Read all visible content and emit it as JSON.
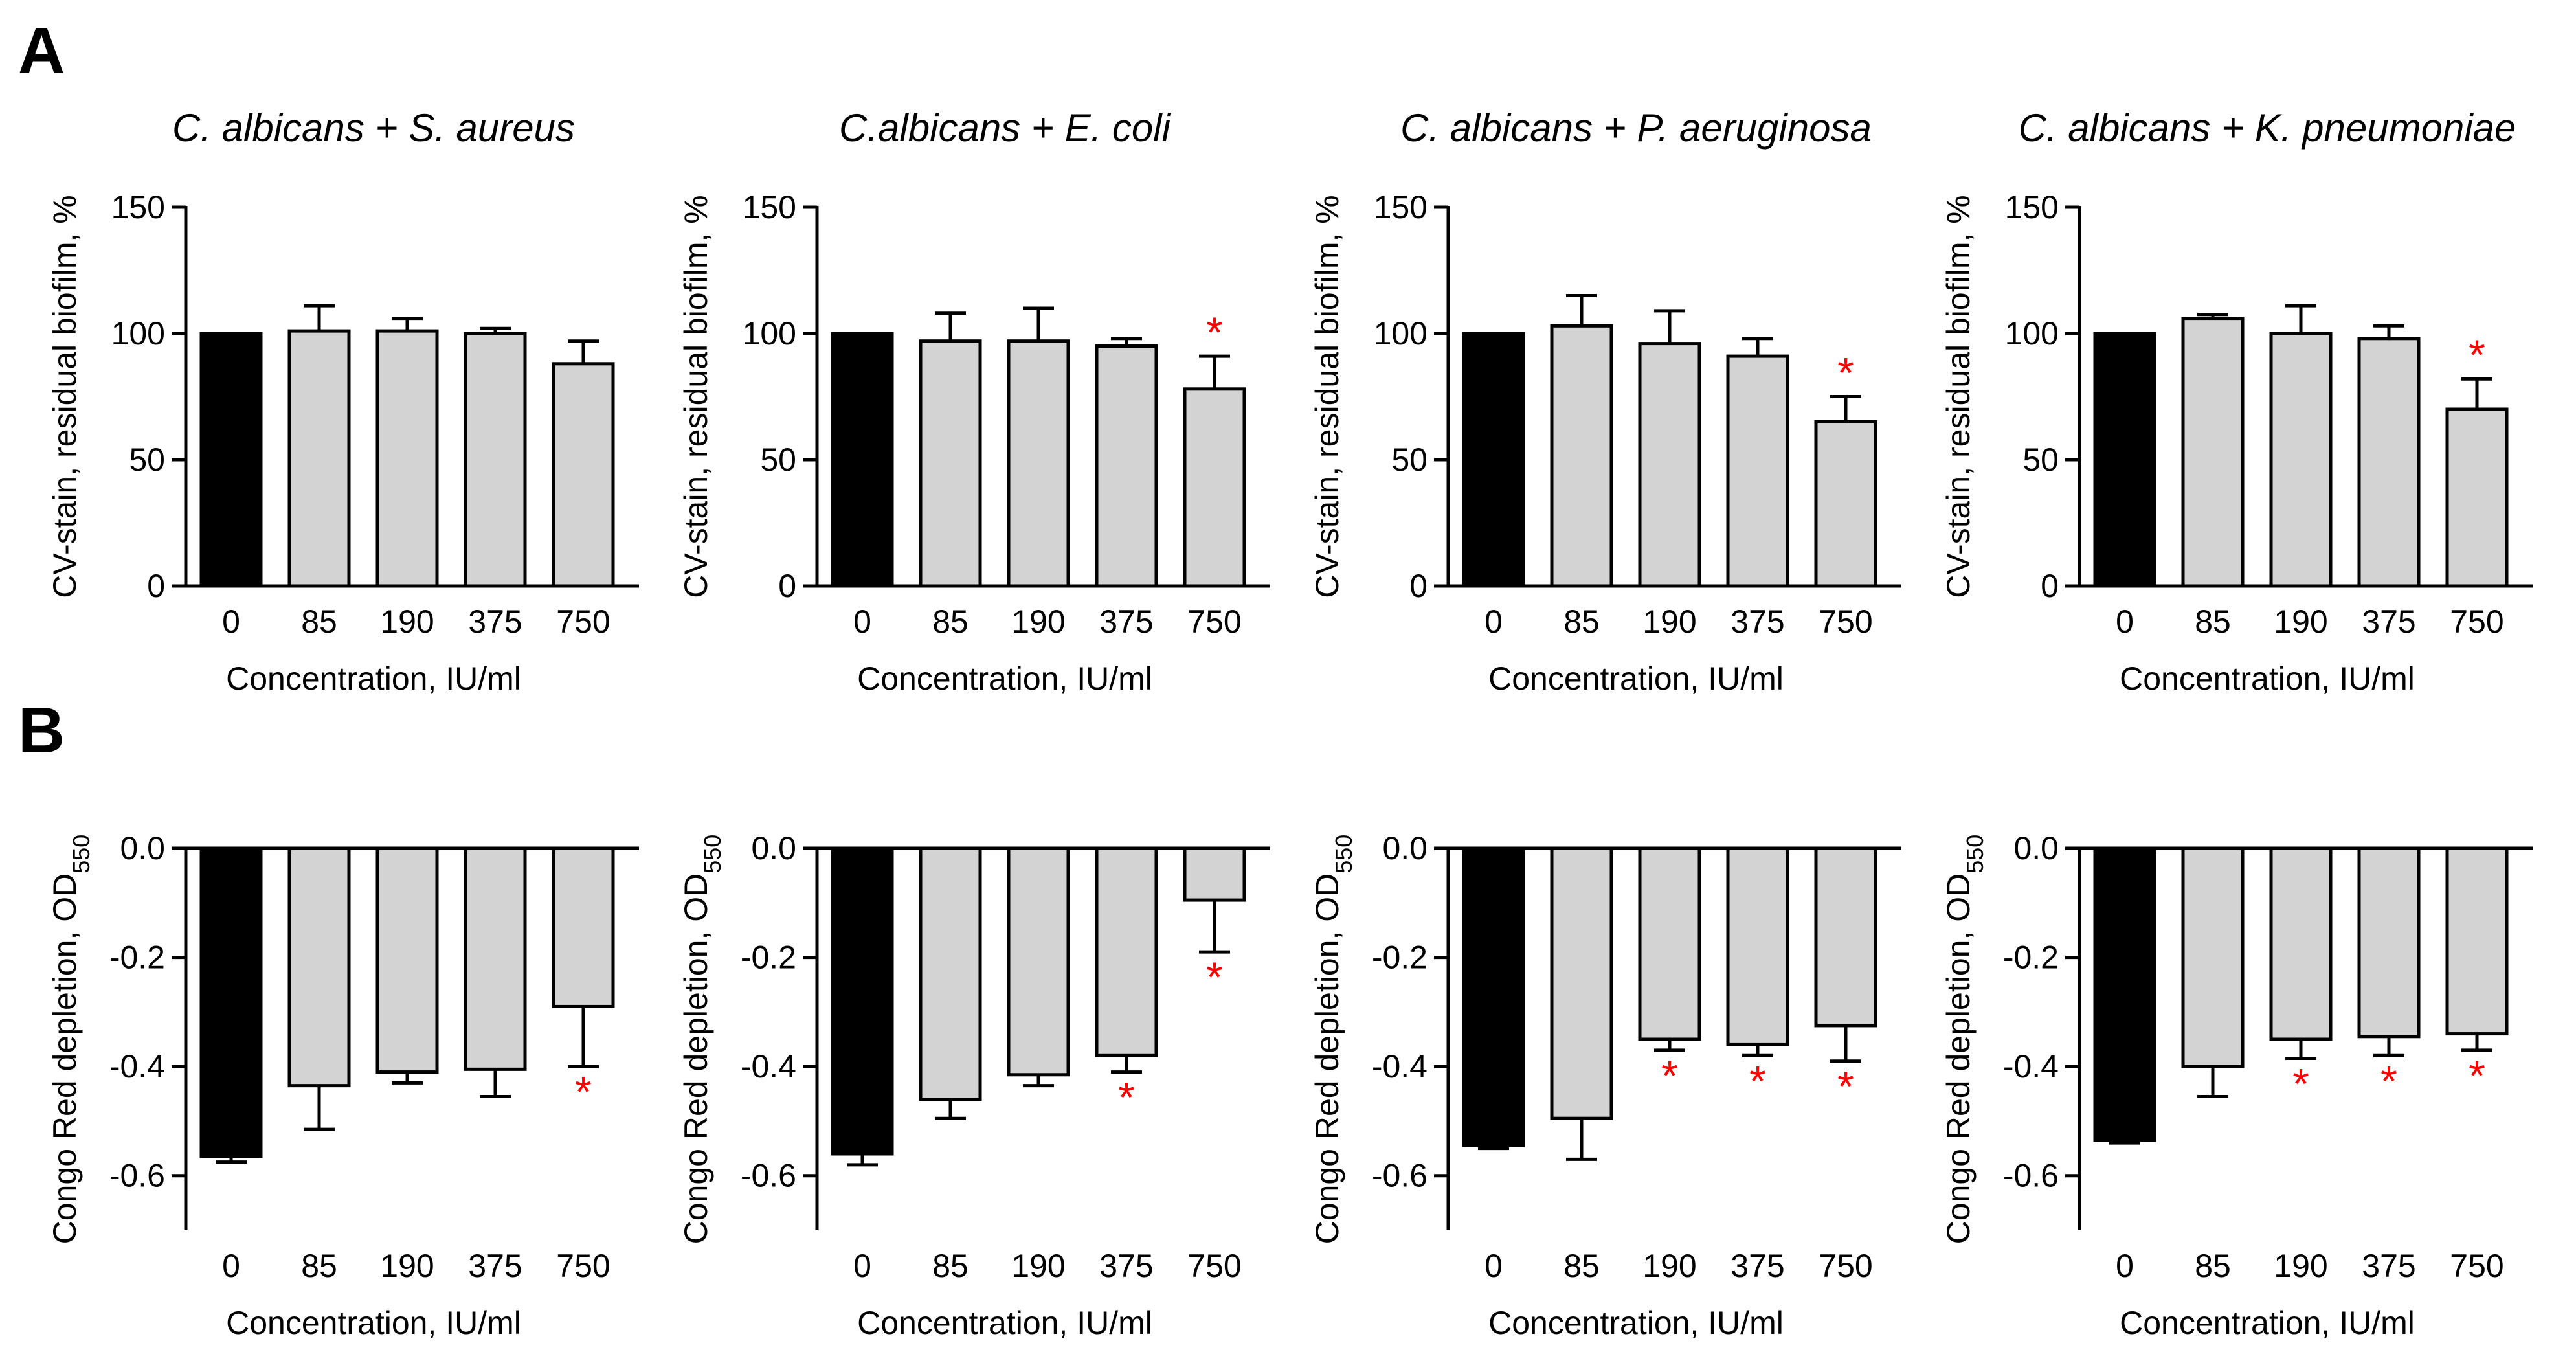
{
  "panel_labels": [
    "A",
    "B"
  ],
  "chart_data": [
    {
      "type": "bar",
      "panel": "A",
      "title": "C. albicans + S. aureus",
      "xlabel": "Concentration, IU/ml",
      "ylabel": "CV-stain, residual biofilm, %",
      "categories": [
        "0",
        "85",
        "190",
        "375",
        "750"
      ],
      "values": [
        100,
        101,
        101,
        100,
        88
      ],
      "errors": [
        0,
        10,
        5,
        2,
        9
      ],
      "significant": [
        "",
        "",
        "",
        "",
        ""
      ],
      "ylim": [
        0,
        150
      ],
      "yticks": [
        "0",
        "50",
        "100",
        "150"
      ],
      "colors": [
        "#000000",
        "#d3d3d3",
        "#d3d3d3",
        "#d3d3d3",
        "#d3d3d3"
      ]
    },
    {
      "type": "bar",
      "panel": "A",
      "title": "C.albicans + E. coli",
      "xlabel": "Concentration, IU/ml",
      "ylabel": "CV-stain, residual biofilm, %",
      "categories": [
        "0",
        "85",
        "190",
        "375",
        "750"
      ],
      "values": [
        100,
        97,
        97,
        95,
        78
      ],
      "errors": [
        0,
        11,
        13,
        3,
        13
      ],
      "significant": [
        "",
        "",
        "",
        "",
        "*"
      ],
      "ylim": [
        0,
        150
      ],
      "yticks": [
        "0",
        "50",
        "100",
        "150"
      ],
      "colors": [
        "#000000",
        "#d3d3d3",
        "#d3d3d3",
        "#d3d3d3",
        "#d3d3d3"
      ]
    },
    {
      "type": "bar",
      "panel": "A",
      "title": "C. albicans + P. aeruginosa",
      "xlabel": "Concentration, IU/ml",
      "ylabel": "CV-stain, residual biofilm, %",
      "categories": [
        "0",
        "85",
        "190",
        "375",
        "750"
      ],
      "values": [
        100,
        103,
        96,
        91,
        65
      ],
      "errors": [
        0,
        12,
        13,
        7,
        10
      ],
      "significant": [
        "",
        "",
        "",
        "",
        "*"
      ],
      "ylim": [
        0,
        150
      ],
      "yticks": [
        "0",
        "50",
        "100",
        "150"
      ],
      "colors": [
        "#000000",
        "#d3d3d3",
        "#d3d3d3",
        "#d3d3d3",
        "#d3d3d3"
      ]
    },
    {
      "type": "bar",
      "panel": "A",
      "title": "C. albicans + K. pneumoniae",
      "xlabel": "Concentration, IU/ml",
      "ylabel": "CV-stain, residual biofilm, %",
      "categories": [
        "0",
        "85",
        "190",
        "375",
        "750"
      ],
      "values": [
        100,
        106,
        100,
        98,
        70
      ],
      "errors": [
        0,
        1.5,
        11,
        5,
        12
      ],
      "significant": [
        "",
        "",
        "",
        "",
        "*"
      ],
      "ylim": [
        0,
        150
      ],
      "yticks": [
        "0",
        "50",
        "100",
        "150"
      ],
      "colors": [
        "#000000",
        "#d3d3d3",
        "#d3d3d3",
        "#d3d3d3",
        "#d3d3d3"
      ]
    },
    {
      "type": "bar",
      "panel": "B",
      "title": "",
      "xlabel": "Concentration, IU/ml",
      "ylabel": "Congo Red depletion, OD",
      "ylabel_subscript": "550",
      "categories": [
        "0",
        "85",
        "190",
        "375",
        "750"
      ],
      "values": [
        -0.565,
        -0.435,
        -0.41,
        -0.405,
        -0.29
      ],
      "errors": [
        0.01,
        0.08,
        0.02,
        0.05,
        0.11
      ],
      "significant": [
        "",
        "",
        "",
        "",
        "*"
      ],
      "ylim": [
        -0.7,
        0
      ],
      "yticks": [
        "-0.6",
        "-0.4",
        "-0.2",
        "0.0"
      ],
      "colors": [
        "#000000",
        "#d3d3d3",
        "#d3d3d3",
        "#d3d3d3",
        "#d3d3d3"
      ]
    },
    {
      "type": "bar",
      "panel": "B",
      "title": "",
      "xlabel": "Concentration, IU/ml",
      "ylabel": "Congo Red depletion, OD",
      "ylabel_subscript": "550",
      "categories": [
        "0",
        "85",
        "190",
        "375",
        "750"
      ],
      "values": [
        -0.56,
        -0.46,
        -0.415,
        -0.38,
        -0.095
      ],
      "errors": [
        0.02,
        0.035,
        0.02,
        0.03,
        0.095
      ],
      "significant": [
        "",
        "",
        "",
        "*",
        "*"
      ],
      "ylim": [
        -0.7,
        0
      ],
      "yticks": [
        "-0.6",
        "-0.4",
        "-0.2",
        "0.0"
      ],
      "colors": [
        "#000000",
        "#d3d3d3",
        "#d3d3d3",
        "#d3d3d3",
        "#d3d3d3"
      ]
    },
    {
      "type": "bar",
      "panel": "B",
      "title": "",
      "xlabel": "Concentration, IU/ml",
      "ylabel": "Congo Red depletion, OD",
      "ylabel_subscript": "550",
      "categories": [
        "0",
        "85",
        "190",
        "375",
        "750"
      ],
      "values": [
        -0.545,
        -0.495,
        -0.35,
        -0.36,
        -0.325
      ],
      "errors": [
        0.005,
        0.075,
        0.02,
        0.02,
        0.065
      ],
      "significant": [
        "",
        "",
        "*",
        "*",
        "*"
      ],
      "ylim": [
        -0.7,
        0
      ],
      "yticks": [
        "-0.6",
        "-0.4",
        "-0.2",
        "0.0"
      ],
      "colors": [
        "#000000",
        "#d3d3d3",
        "#d3d3d3",
        "#d3d3d3",
        "#d3d3d3"
      ]
    },
    {
      "type": "bar",
      "panel": "B",
      "title": "",
      "xlabel": "Concentration, IU/ml",
      "ylabel": "Congo Red depletion, OD",
      "ylabel_subscript": "550",
      "categories": [
        "0",
        "85",
        "190",
        "375",
        "750"
      ],
      "values": [
        -0.535,
        -0.4,
        -0.35,
        -0.345,
        -0.34
      ],
      "errors": [
        0.005,
        0.055,
        0.035,
        0.035,
        0.03
      ],
      "significant": [
        "",
        "",
        "*",
        "*",
        "*"
      ],
      "ylim": [
        -0.7,
        0
      ],
      "yticks": [
        "-0.6",
        "-0.4",
        "-0.2",
        "0.0"
      ],
      "colors": [
        "#000000",
        "#d3d3d3",
        "#d3d3d3",
        "#d3d3d3",
        "#d3d3d3"
      ]
    }
  ]
}
